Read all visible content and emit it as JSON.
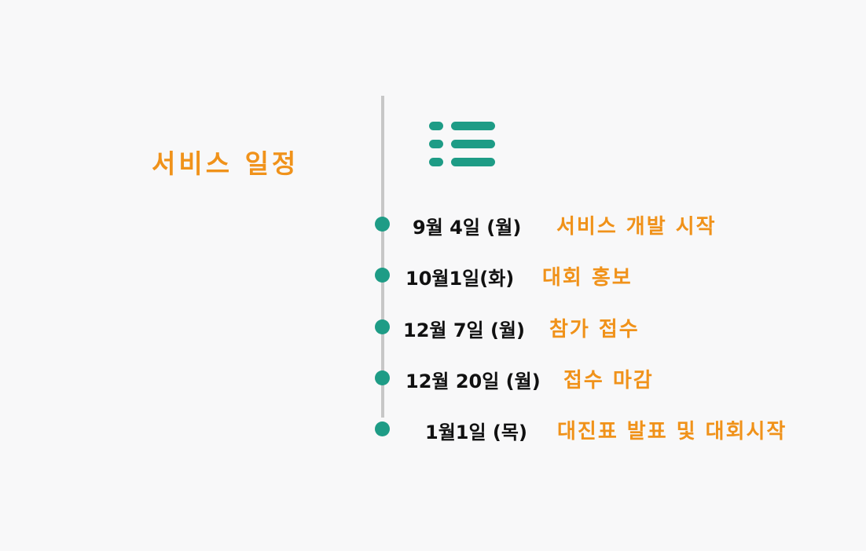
{
  "section": {
    "title": "서비스 일정"
  },
  "icons": {
    "list": "list-icon"
  },
  "colors": {
    "accent_orange": "#f0921a",
    "accent_teal": "#1e9c86",
    "line_gray": "#c7c7c7",
    "date_text": "#111111"
  },
  "events": [
    {
      "date": "9월  4일 (월)",
      "desc": "서비스 개발 시작"
    },
    {
      "date": "10월1일(화)",
      "desc": "대회 홍보"
    },
    {
      "date": "12월 7일 (월)",
      "desc": "참가 접수"
    },
    {
      "date": "12월 20일 (월)",
      "desc": "접수 마감"
    },
    {
      "date": "1월1일 (목)",
      "desc": "대진표 발표 및 대회시작"
    }
  ]
}
